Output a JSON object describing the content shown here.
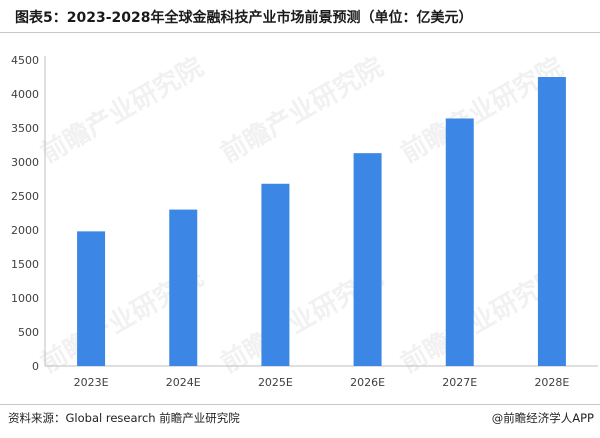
{
  "title": "图表5：2023-2028年全球金融科技产业市场前景预测（单位：亿美元）",
  "footer": {
    "source": "资料来源：Global research 前瞻产业研究院",
    "credit": "@前瞻经济学人APP"
  },
  "watermark": "前瞻产业研究院",
  "colors": {
    "bar": "#3c87e6",
    "axis": "#bfbfbf",
    "text": "#404040"
  },
  "chart_data": {
    "type": "bar",
    "title": "图表5：2023-2028年全球金融科技产业市场前景预测（单位：亿美元）",
    "categories": [
      "2023E",
      "2024E",
      "2025E",
      "2026E",
      "2027E",
      "2028E"
    ],
    "values": [
      1980,
      2300,
      2680,
      3130,
      3640,
      4250
    ],
    "ylim": [
      0,
      4500
    ],
    "yticks": [
      0,
      500,
      1000,
      1500,
      2000,
      2500,
      3000,
      3500,
      4000,
      4500
    ],
    "grid": false,
    "legend": "none"
  }
}
